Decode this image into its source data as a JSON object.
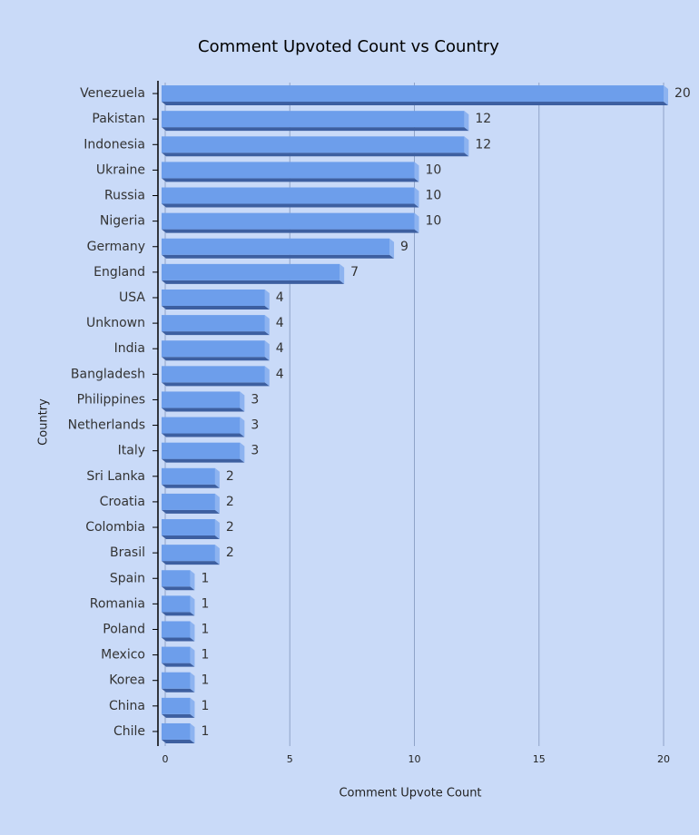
{
  "chart_data": {
    "type": "bar",
    "orientation": "horizontal",
    "title": "Comment Upvoted Count vs Country",
    "x_label": "Comment Upvote Count",
    "y_label": "Country",
    "categories": [
      "Venezuela",
      "Pakistan",
      "Indonesia",
      "Ukraine",
      "Russia",
      "Nigeria",
      "Germany",
      "England",
      "USA",
      "Unknown",
      "India",
      "Bangladesh",
      "Philippines",
      "Netherlands",
      "Italy",
      "Sri Lanka",
      "Croatia",
      "Colombia",
      "Brasil",
      "Spain",
      "Romania",
      "Poland",
      "Mexico",
      "Korea",
      "China",
      "Chile"
    ],
    "values": [
      20,
      12,
      12,
      10,
      10,
      10,
      9,
      7,
      4,
      4,
      4,
      4,
      3,
      3,
      3,
      2,
      2,
      2,
      2,
      1,
      1,
      1,
      1,
      1,
      1,
      1
    ],
    "color": "#6d9eeb",
    "xlim": [
      0,
      20
    ],
    "xticks": [
      0,
      5,
      10,
      15,
      20
    ],
    "grid": true
  }
}
